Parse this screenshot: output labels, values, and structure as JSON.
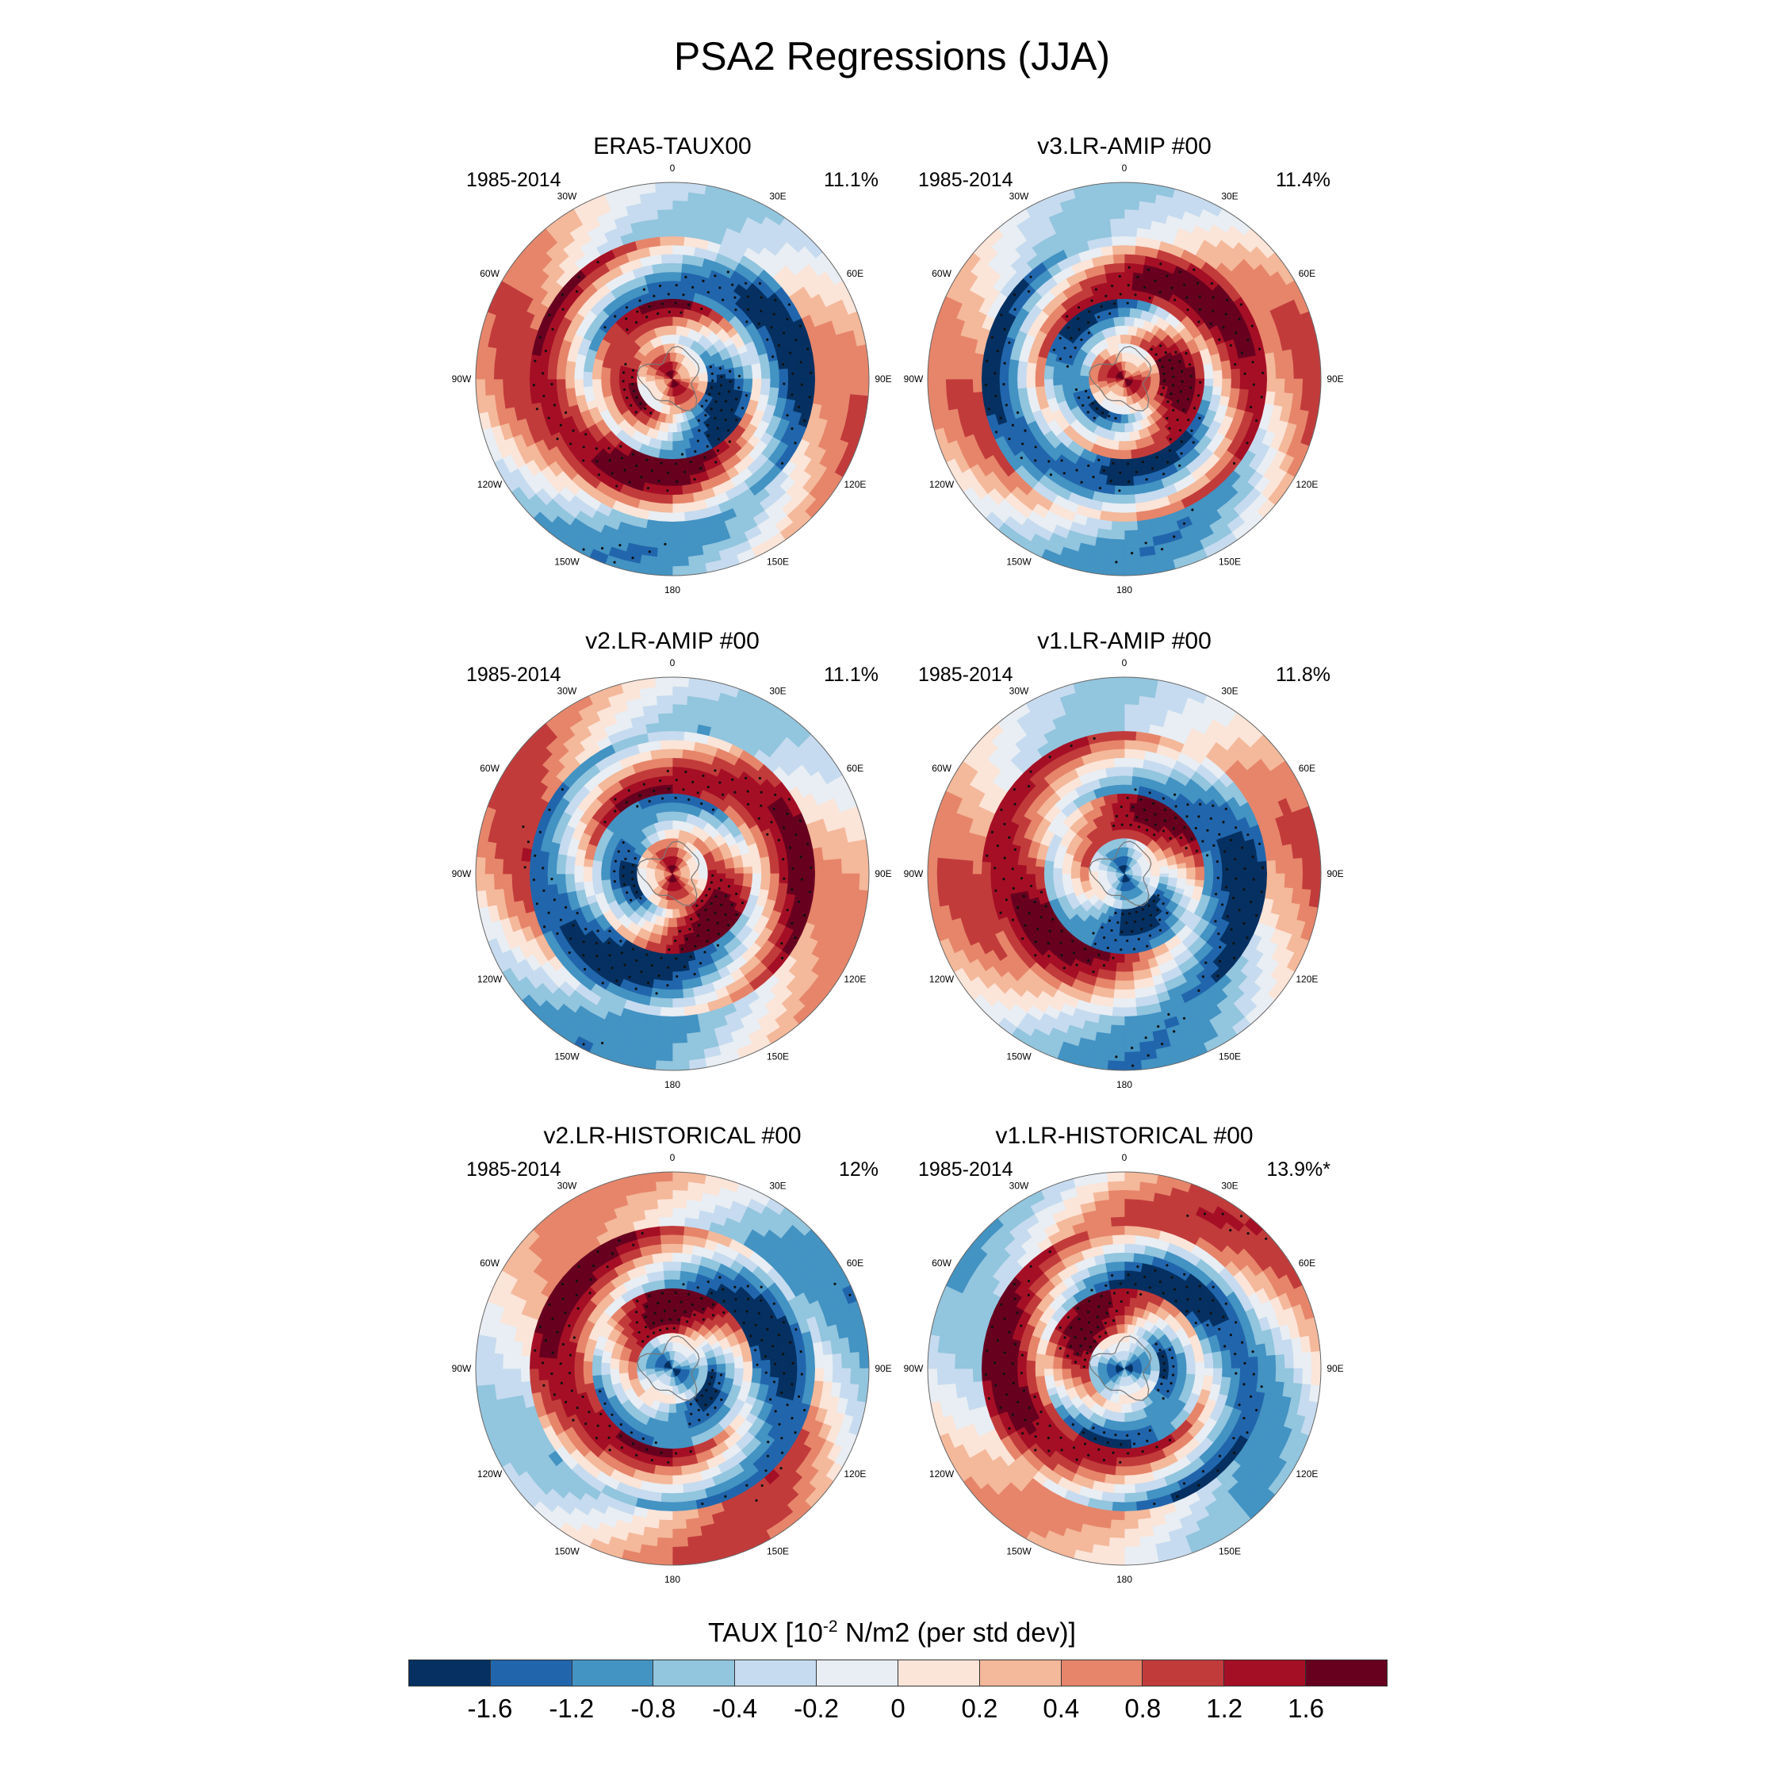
{
  "title": "PSA2 Regressions (JJA)",
  "lon_labels": [
    "0",
    "30E",
    "60E",
    "90E",
    "120E",
    "150E",
    "180",
    "150W",
    "120W",
    "90W",
    "60W",
    "30W"
  ],
  "panels": [
    {
      "title": "ERA5-TAUX00",
      "years": "1985-2014",
      "percent": "11.1%",
      "pattern": {
        "rot": 0,
        "centerSign": 1,
        "inner": -1,
        "middle": 1,
        "outer": 1,
        "swirl": 1.0
      }
    },
    {
      "title": "v3.LR-AMIP  #00",
      "years": "1985-2014",
      "percent": "11.4%",
      "pattern": {
        "rot": 30,
        "centerSign": 1,
        "inner": 1,
        "middle": -1,
        "outer": 1,
        "swirl": 1.1
      }
    },
    {
      "title": "v2.LR-AMIP  #00",
      "years": "1985-2014",
      "percent": "11.1%",
      "pattern": {
        "rot": -20,
        "centerSign": 1,
        "inner": 1,
        "middle": -1,
        "outer": 1,
        "swirl": 0.9
      }
    },
    {
      "title": "v1.LR-AMIP  #00",
      "years": "1985-2014",
      "percent": "11.8%",
      "pattern": {
        "rot": 80,
        "centerSign": -1,
        "inner": 1,
        "middle": -1,
        "outer": -1,
        "swirl": 0.7
      }
    },
    {
      "title": "v2.LR-HISTORICAL  #00",
      "years": "1985-2014",
      "percent": "12%",
      "pattern": {
        "rot": 120,
        "centerSign": -1,
        "inner": 1,
        "middle": -1,
        "outer": 1,
        "swirl": 0.9
      }
    },
    {
      "title": "v1.LR-HISTORICAL  #00",
      "years": "1985-2014",
      "percent": "13.9%*",
      "pattern": {
        "rot": 160,
        "centerSign": -1,
        "inner": 1,
        "middle": -1,
        "outer": -1,
        "swirl": 1.0
      }
    }
  ],
  "colorbar": {
    "title_prefix": "TAUX [10",
    "title_exponent": "-2",
    "title_suffix": " N/m2 (per std dev)]",
    "labels": [
      "-1.6",
      "-1.2",
      "-0.8",
      "-0.4",
      "-0.2",
      "0",
      "0.2",
      "0.4",
      "0.8",
      "1.2",
      "1.6"
    ],
    "colors": [
      "#053061",
      "#2166ac",
      "#4393c3",
      "#92c5de",
      "#c6dbef",
      "#e8eef3",
      "#fbe4d8",
      "#f4b89a",
      "#e6856a",
      "#c23b3b",
      "#a50f25",
      "#67001f"
    ]
  }
}
